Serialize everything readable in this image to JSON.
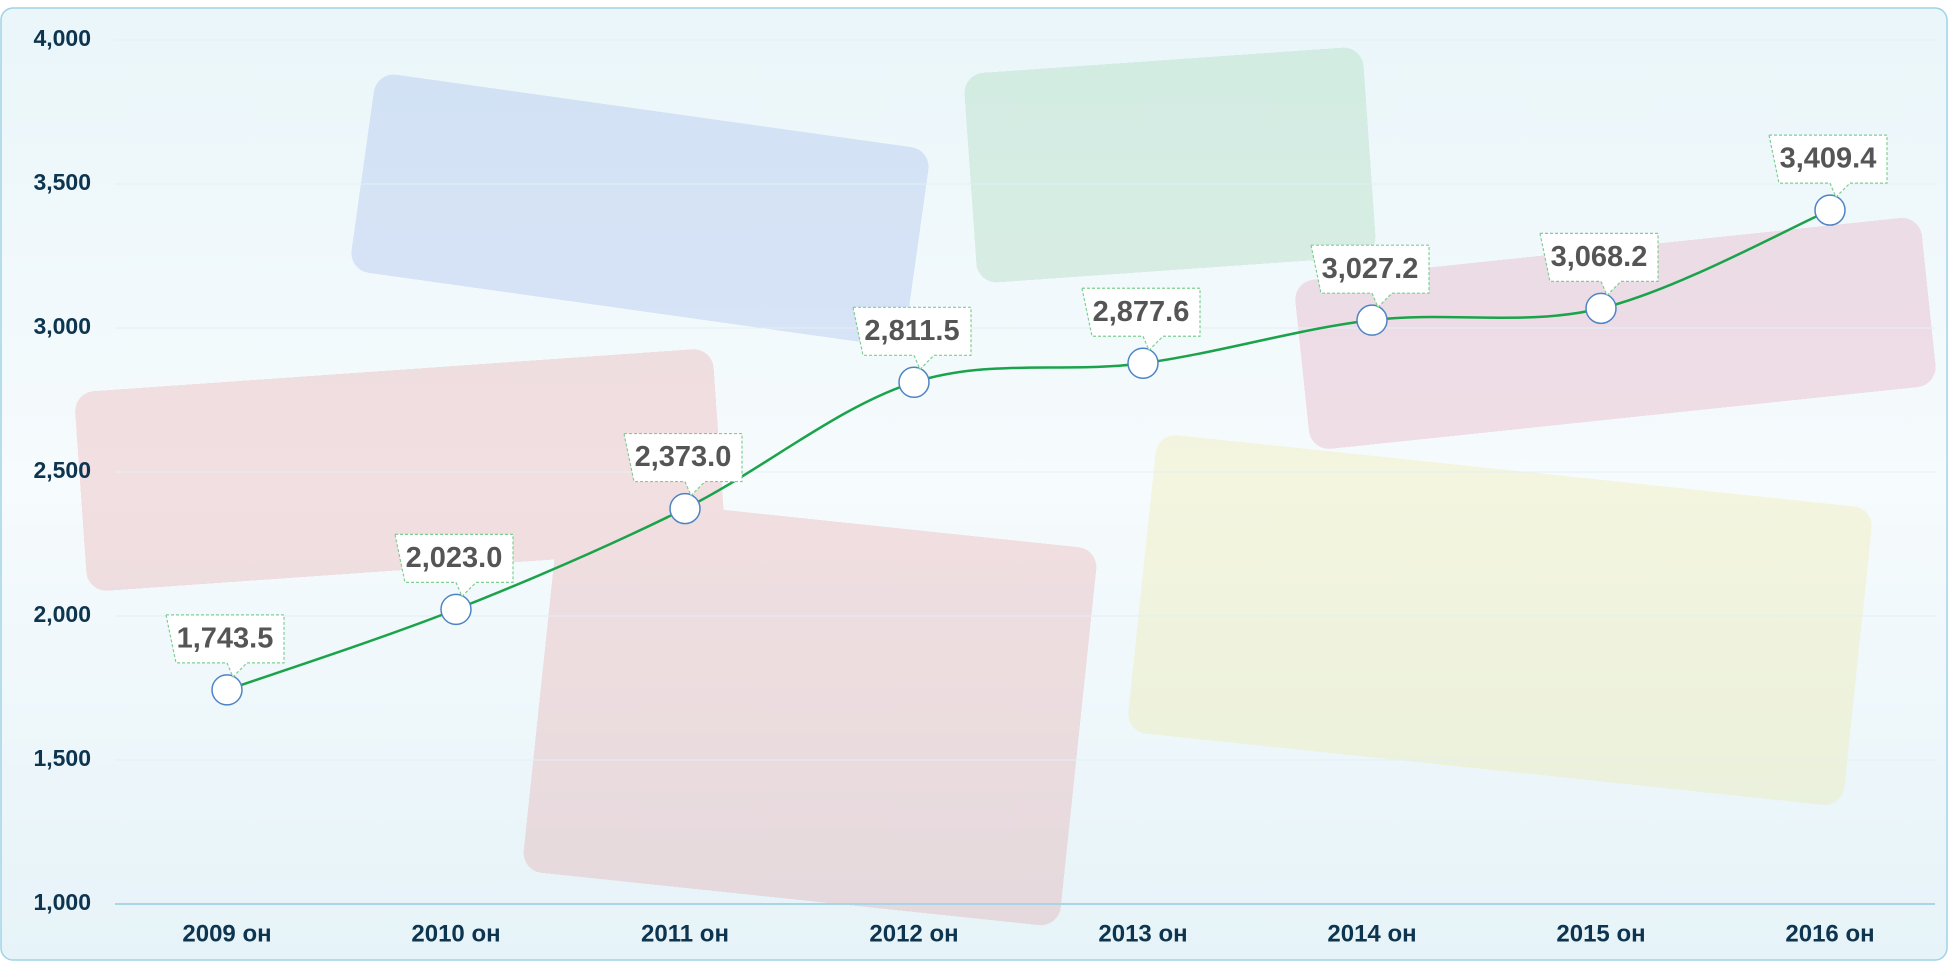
{
  "chart_data": {
    "type": "line",
    "categories": [
      "2009 он",
      "2010 он",
      "2011 он",
      "2012 он",
      "2013 он",
      "2014 он",
      "2015 он",
      "2016 он"
    ],
    "series": [
      {
        "name": "",
        "color": "#1aa34a",
        "values": [
          1743.5,
          2023.0,
          2373.0,
          2811.5,
          2877.6,
          3027.2,
          3068.2,
          3409.4
        ],
        "value_labels": [
          "1,743.5",
          "2,023.0",
          "2,373.0",
          "2,811.5",
          "2,877.6",
          "3,027.2",
          "3,068.2",
          "3,409.4"
        ]
      }
    ],
    "ylim": [
      1000,
      4000
    ],
    "yticks": [
      {
        "value": 1000,
        "label": "1,000"
      },
      {
        "value": 1500,
        "label": "1,500"
      },
      {
        "value": 2000,
        "label": "2,000"
      },
      {
        "value": 2500,
        "label": "2,500"
      },
      {
        "value": 3000,
        "label": "3,000"
      },
      {
        "value": 3500,
        "label": "3,500"
      },
      {
        "value": 4000,
        "label": "4,000"
      }
    ],
    "grid": true
  }
}
